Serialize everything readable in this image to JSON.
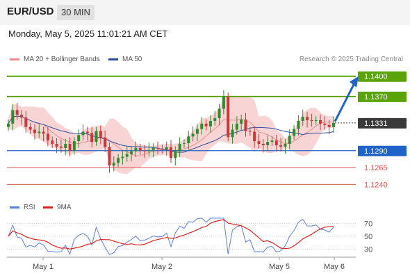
{
  "header": {
    "pair": "EUR/USD",
    "timeframe": "30 MIN"
  },
  "datetime": "Monday, May 5, 2025 11:01:21 AM CET",
  "legend": {
    "ma20": {
      "label": "MA 20 + Bollinger Bands",
      "color": "#f08a8a"
    },
    "ma50": {
      "label": "MA 50",
      "color": "#2a4e9a"
    }
  },
  "credit": "Research © 2025 Trading Central",
  "levels": [
    {
      "value": "1.1400",
      "kind": "target"
    },
    {
      "value": "1.1370",
      "kind": "resistance"
    },
    {
      "value": "1.1331",
      "kind": "current"
    },
    {
      "value": "1.1290",
      "kind": "pivot"
    },
    {
      "value": "1.1265",
      "kind": "support"
    },
    {
      "value": "1.1240",
      "kind": "support"
    }
  ],
  "colors": {
    "green": "#5aa30a",
    "blue": "#1f63c8",
    "red": "#e05252",
    "current": "#3a3a3a",
    "bull": "#2e8b2e",
    "bear": "#c73a3a",
    "band": "#f7c6c6"
  },
  "rsi": {
    "legend": [
      {
        "label": "RSI",
        "color": "#5b7fd6"
      },
      {
        "label": "9MA",
        "color": "#e02020"
      }
    ],
    "ticks": [
      "70",
      "50",
      "30"
    ]
  },
  "xaxis": [
    "May 1",
    "May 2",
    "May 5",
    "May 6"
  ],
  "chart_data": {
    "type": "candlestick",
    "series_close": [
      1.133,
      1.135,
      1.1343,
      1.1339,
      1.1325,
      1.1321,
      1.1316,
      1.1318,
      1.1315,
      1.1305,
      1.13,
      1.1296,
      1.1294,
      1.13,
      1.129,
      1.1304,
      1.1313,
      1.1318,
      1.1316,
      1.1303,
      1.1319,
      1.1309,
      1.1295,
      1.1268,
      1.1272,
      1.1279,
      1.1281,
      1.1285,
      1.1289,
      1.1294,
      1.129,
      1.1289,
      1.1291,
      1.1294,
      1.1293,
      1.1292,
      1.1295,
      1.1279,
      1.1289,
      1.13,
      1.1301,
      1.1311,
      1.1315,
      1.1322,
      1.133,
      1.1326,
      1.1334,
      1.1338,
      1.1352,
      1.137,
      1.131,
      1.1321,
      1.133,
      1.1336,
      1.1319,
      1.1318,
      1.1304,
      1.13,
      1.1298,
      1.1303,
      1.1305,
      1.1298,
      1.1296,
      1.13,
      1.1312,
      1.1322,
      1.1334,
      1.134,
      1.1335,
      1.1334,
      1.1335,
      1.133,
      1.1328,
      1.1325,
      1.1331
    ],
    "ylim": [
      1.1225,
      1.141
    ],
    "rsi_ylim": [
      20,
      80
    ]
  }
}
